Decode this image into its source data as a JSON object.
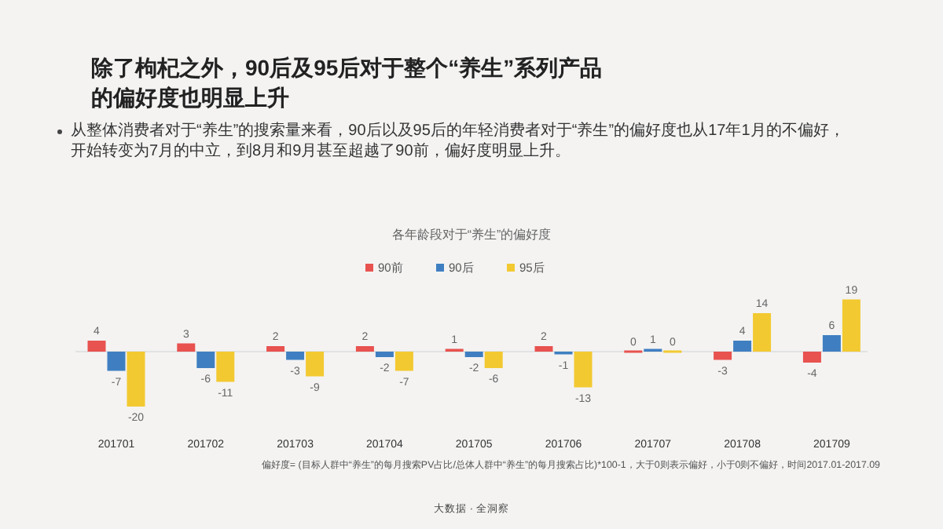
{
  "chart_data": {
    "type": "bar",
    "title": "除了枸杞之外，90后及95后对于整个“养生”系列产品的偏好度也明显上升",
    "subtitle": "各年龄段对于“养生”的偏好度",
    "annotations": [
      "从整体消费者对于“养生”的搜索量来看，90后以及95后的年轻消费者对于“养生”的偏好度也从17年1月的不偏好，开始转变为7月的中立，到8月和9月甚至超越了90前，偏好度明显上升。",
      "偏好度= (目标人群中“养生”的每月搜索PV占比/总体人群中“养生”的每月搜索占比)*100-1，大于0则表示偏好，小于0则不偏好，时间2017.01-2017.09",
      "大数据 · 全洞察"
    ],
    "categories": [
      "201701",
      "201702",
      "201703",
      "201704",
      "201705",
      "201706",
      "201707",
      "201708",
      "201709"
    ],
    "series": [
      {
        "name": "90前",
        "color": "#e8524f",
        "values": [
          4,
          3,
          2,
          2,
          1,
          2,
          0,
          -3,
          -4
        ]
      },
      {
        "name": "90后",
        "color": "#3f7fc1",
        "values": [
          -7,
          -6,
          -3,
          -2,
          -2,
          -1,
          1,
          4,
          6
        ]
      },
      {
        "name": "95后",
        "color": "#f2c931",
        "values": [
          -20,
          -11,
          -9,
          -7,
          -6,
          -13,
          0,
          14,
          19
        ]
      }
    ],
    "data_labels": true,
    "legend": "top"
  }
}
